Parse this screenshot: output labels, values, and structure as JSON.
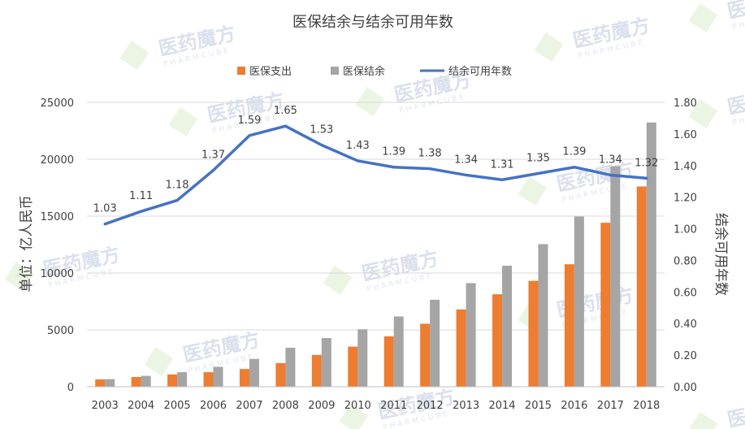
{
  "watermark": {
    "brand": "医药魔方",
    "sub": "PHARMCUBE"
  },
  "colors": {
    "expense": "#ED7D31",
    "balance": "#A5A5A5",
    "line": "#4472C4"
  },
  "chart_data": {
    "type": "bar",
    "title": "医保结余与结余可用年数",
    "categories": [
      "2003",
      "2004",
      "2005",
      "2006",
      "2007",
      "2008",
      "2009",
      "2010",
      "2011",
      "2012",
      "2013",
      "2014",
      "2015",
      "2016",
      "2017",
      "2018"
    ],
    "series": [
      {
        "name": "医保支出",
        "type": "bar",
        "axis": "left",
        "values": [
          650,
          860,
          1080,
          1280,
          1560,
          2080,
          2800,
          3530,
          4430,
          5540,
          6800,
          8130,
          9310,
          10770,
          14420,
          17610
        ]
      },
      {
        "name": "医保结余",
        "type": "bar",
        "axis": "left",
        "values": [
          670,
          960,
          1280,
          1750,
          2450,
          3430,
          4280,
          5050,
          6180,
          7650,
          9110,
          10640,
          12540,
          14960,
          19390,
          23230
        ]
      },
      {
        "name": "结余可用年数",
        "type": "line",
        "axis": "right",
        "values": [
          1.03,
          1.11,
          1.18,
          1.37,
          1.59,
          1.65,
          1.53,
          1.43,
          1.39,
          1.38,
          1.34,
          1.31,
          1.35,
          1.39,
          1.34,
          1.32
        ],
        "labels": [
          "1.03",
          "1.11",
          "1.18",
          "1.37",
          "1.59",
          "1.65",
          "1.53",
          "1.43",
          "1.39",
          "1.38",
          "1.34",
          "1.31",
          "1.35",
          "1.39",
          "1.34",
          "1.32"
        ]
      }
    ],
    "ylabel": "单位：亿人民币",
    "ylabel_right": "结余可用年数",
    "ylim": [
      0,
      25000
    ],
    "yticks": [
      "0",
      "5000",
      "10000",
      "15000",
      "20000",
      "25000"
    ],
    "ylim_right": [
      0,
      1.8
    ],
    "yticks_right": [
      "0.00",
      "0.20",
      "0.40",
      "0.60",
      "0.80",
      "1.00",
      "1.20",
      "1.40",
      "1.60",
      "1.80"
    ],
    "grid": true,
    "legend_position": "top"
  }
}
